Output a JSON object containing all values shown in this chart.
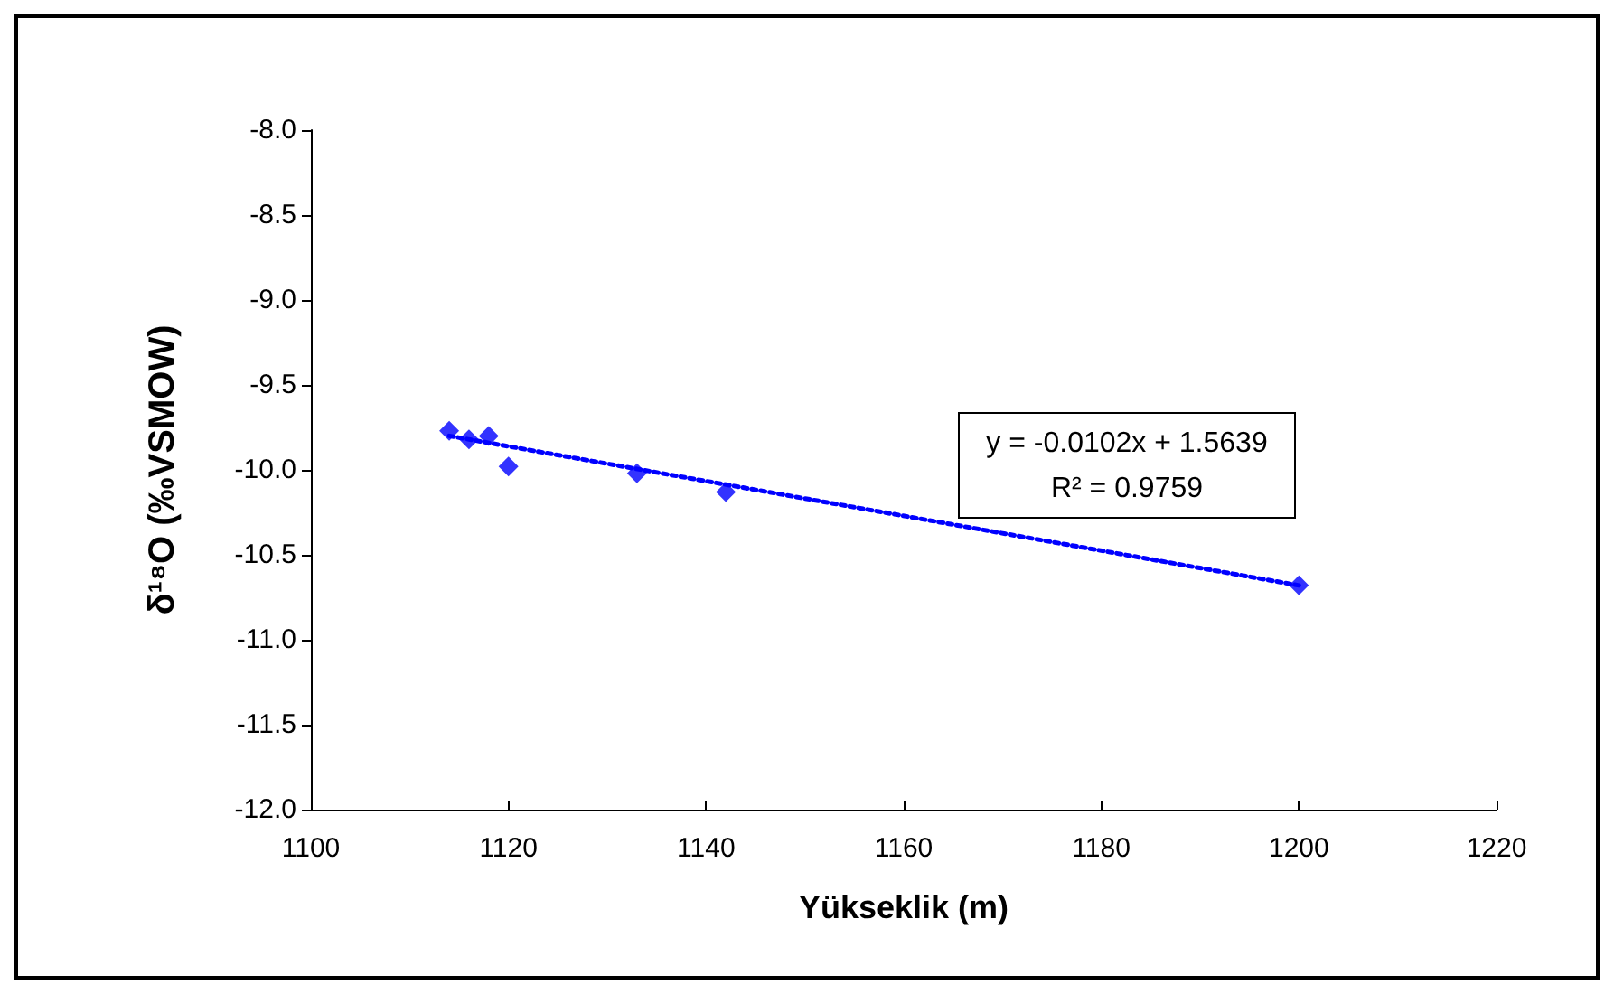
{
  "chart_data": {
    "type": "scatter",
    "xlabel": "Yükseklik (m)",
    "ylabel": "δ¹⁸O (‰VSMOW)",
    "xlim": [
      1100,
      1220
    ],
    "xticks": [
      1100,
      1120,
      1140,
      1160,
      1180,
      1200,
      1220
    ],
    "ylim": [
      -12.0,
      -8.0
    ],
    "yticks": [
      {
        "value": -12,
        "label": "-12.0"
      },
      {
        "value": -11.5,
        "label": "-11.5"
      },
      {
        "value": -11,
        "label": "-11.0"
      },
      {
        "value": -10.5,
        "label": "-10.5"
      },
      {
        "value": -10,
        "label": "-10.0"
      },
      {
        "value": -9.5,
        "label": "-9.5"
      },
      {
        "value": -9,
        "label": "-9.0"
      },
      {
        "value": -8.5,
        "label": "-8.5"
      },
      {
        "value": -8,
        "label": "-8.0"
      }
    ],
    "grid": false,
    "series": [
      {
        "type": "scatter",
        "color": "#0000ff",
        "marker": "diamond",
        "x": [
          1114,
          1116,
          1118,
          1120,
          1133,
          1142,
          1200
        ],
        "values": [
          -9.77,
          -9.82,
          -9.8,
          -9.98,
          -10.02,
          -10.13,
          -10.68
        ]
      },
      {
        "type": "line",
        "color": "#0000ff",
        "marker": "none",
        "line_style": "dotted",
        "x": [
          1114,
          1200
        ],
        "values": [
          -9.8,
          -10.68
        ]
      }
    ],
    "annotations": [
      "y = -0.0102x + 1.5639",
      "R² = 0.9759"
    ]
  }
}
